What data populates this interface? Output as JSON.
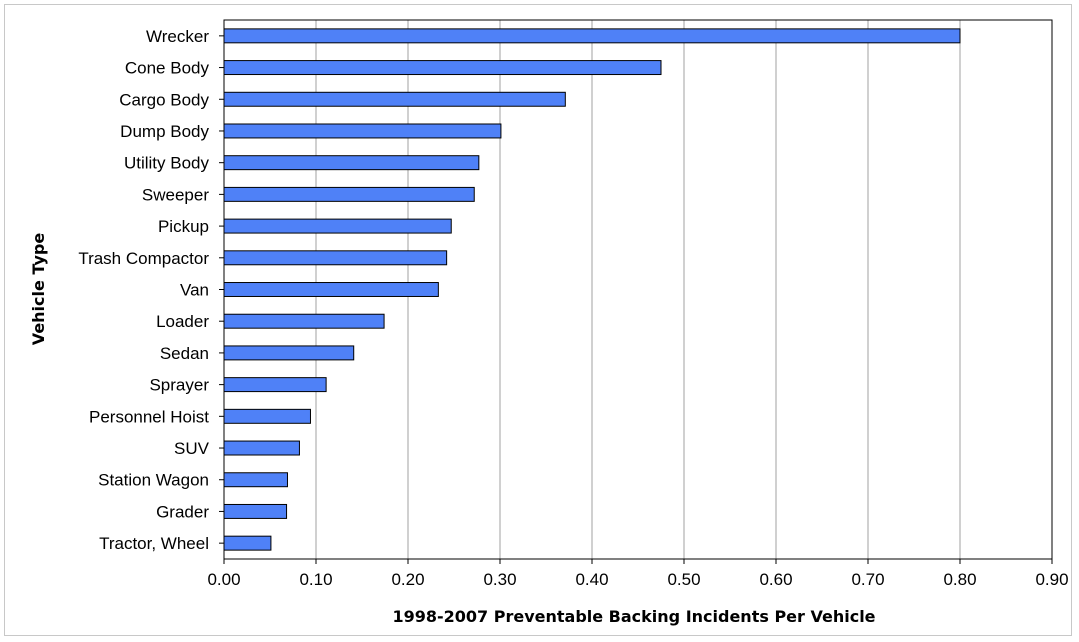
{
  "chart_data": {
    "type": "bar",
    "orientation": "horizontal",
    "title": "",
    "xlabel": "1998-2007 Preventable Backing Incidents Per Vehicle",
    "ylabel": "Vehicle Type",
    "categories": [
      "Wrecker",
      "Cone Body",
      "Cargo Body",
      "Dump Body",
      "Utility Body",
      "Sweeper",
      "Pickup",
      "Trash Compactor",
      "Van",
      "Loader",
      "Sedan",
      "Sprayer",
      "Personnel Hoist",
      "SUV",
      "Station Wagon",
      "Grader",
      "Tractor, Wheel"
    ],
    "values": [
      0.8,
      0.475,
      0.371,
      0.301,
      0.277,
      0.272,
      0.247,
      0.242,
      0.233,
      0.174,
      0.141,
      0.111,
      0.094,
      0.082,
      0.069,
      0.068,
      0.051
    ],
    "xlim": [
      0,
      0.9
    ],
    "xticks": [
      "0.00",
      "0.10",
      "0.20",
      "0.30",
      "0.40",
      "0.50",
      "0.60",
      "0.70",
      "0.80",
      "0.90"
    ],
    "grid": "vertical",
    "legend": "none",
    "bar_color": "#4f81f7",
    "bar_edge_color": "#000000",
    "grid_color": "#a0a0a0"
  }
}
